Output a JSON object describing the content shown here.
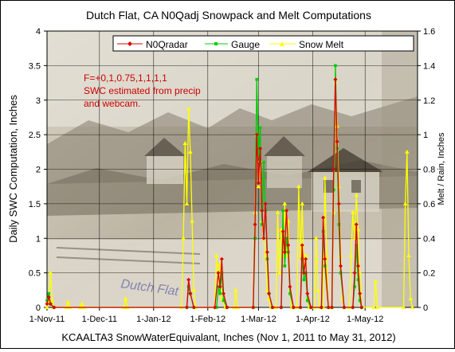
{
  "chart_data": {
    "type": "line",
    "title": "Dutch Flat, CA N0Qadj Snowpack and Melt Computations",
    "xlabel": "KCAALTA3 SnowWaterEquivalant, Inches (Nov 1, 2011 to May 31, 2012)",
    "ylabel": "Daily SWC Computation, Inches",
    "y2label": "Melt / Rain, Inches",
    "xlim": [
      "2011-11-01",
      "2012-05-31"
    ],
    "ylim": [
      0,
      4
    ],
    "y2lim": [
      0,
      1.6
    ],
    "x_ticks": [
      "1-Nov-11",
      "1-Dec-11",
      "1-Jan-12",
      "1-Feb-12",
      "1-Mar-12",
      "1-Apr-12",
      "1-May-12"
    ],
    "y_ticks": [
      "0",
      "0.5",
      "1",
      "1.5",
      "2",
      "2.5",
      "3",
      "3.5",
      "4"
    ],
    "y2_ticks": [
      "0",
      "0.2",
      "0.4",
      "0.6",
      "0.8",
      "1",
      "1.2",
      "1.4",
      "1.6"
    ],
    "grid": true,
    "legend_position": "top",
    "annotation": [
      "F=+0,1,0.75,1,1,1,1",
      "SWC estimated from precip",
      "and webcam."
    ],
    "background_photo_caption": "Dutch Flat",
    "series": [
      {
        "name": "N0Qradar",
        "color": "#dd0000",
        "marker": "diamond",
        "axis": "left",
        "points": [
          [
            "2011-11-01",
            0.05
          ],
          [
            "2011-11-02",
            0.15
          ],
          [
            "2011-11-03",
            0.05
          ],
          [
            "2011-11-05",
            0
          ],
          [
            "2012-01-20",
            0
          ],
          [
            "2012-01-21",
            0.4
          ],
          [
            "2012-01-22",
            0.2
          ],
          [
            "2012-01-24",
            0
          ],
          [
            "2012-02-05",
            0
          ],
          [
            "2012-02-07",
            0.5
          ],
          [
            "2012-02-08",
            0.3
          ],
          [
            "2012-02-09",
            0.7
          ],
          [
            "2012-02-10",
            0.2
          ],
          [
            "2012-02-12",
            0
          ],
          [
            "2012-02-27",
            0
          ],
          [
            "2012-02-28",
            1.2
          ],
          [
            "2012-02-29",
            2.5
          ],
          [
            "2012-03-01",
            1.8
          ],
          [
            "2012-03-02",
            2.3
          ],
          [
            "2012-03-03",
            1.4
          ],
          [
            "2012-03-04",
            1.0
          ],
          [
            "2012-03-05",
            1.5
          ],
          [
            "2012-03-06",
            0.8
          ],
          [
            "2012-03-07",
            0.2
          ],
          [
            "2012-03-09",
            0
          ],
          [
            "2012-03-14",
            0
          ],
          [
            "2012-03-15",
            1.1
          ],
          [
            "2012-03-16",
            0.8
          ],
          [
            "2012-03-17",
            1.4
          ],
          [
            "2012-03-18",
            0.9
          ],
          [
            "2012-03-19",
            0.3
          ],
          [
            "2012-03-21",
            0
          ],
          [
            "2012-03-25",
            0
          ],
          [
            "2012-03-26",
            0.9
          ],
          [
            "2012-03-27",
            0.5
          ],
          [
            "2012-03-28",
            0.7
          ],
          [
            "2012-03-29",
            0.2
          ],
          [
            "2012-03-31",
            0
          ],
          [
            "2012-04-06",
            0
          ],
          [
            "2012-04-07",
            1.3
          ],
          [
            "2012-04-08",
            0.7
          ],
          [
            "2012-04-10",
            0
          ],
          [
            "2012-04-12",
            0
          ],
          [
            "2012-04-13",
            2.0
          ],
          [
            "2012-04-14",
            3.3
          ],
          [
            "2012-04-15",
            2.4
          ],
          [
            "2012-04-16",
            1.5
          ],
          [
            "2012-04-17",
            0.6
          ],
          [
            "2012-04-19",
            0
          ],
          [
            "2012-04-24",
            0
          ],
          [
            "2012-04-25",
            0.5
          ],
          [
            "2012-04-26",
            1.2
          ],
          [
            "2012-04-27",
            0.6
          ],
          [
            "2012-04-28",
            0.2
          ],
          [
            "2012-04-29",
            0
          ]
        ]
      },
      {
        "name": "Gauge",
        "color": "#00cc00",
        "marker": "square",
        "axis": "left",
        "points": [
          [
            "2011-11-01",
            0.1
          ],
          [
            "2011-11-02",
            0.2
          ],
          [
            "2011-11-03",
            0.05
          ],
          [
            "2011-11-05",
            0
          ],
          [
            "2012-01-20",
            0
          ],
          [
            "2012-01-21",
            0.3
          ],
          [
            "2012-01-22",
            0.2
          ],
          [
            "2012-01-24",
            0
          ],
          [
            "2012-02-06",
            0
          ],
          [
            "2012-02-07",
            0.3
          ],
          [
            "2012-02-08",
            0.2
          ],
          [
            "2012-02-09",
            0.5
          ],
          [
            "2012-02-10",
            0.1
          ],
          [
            "2012-02-12",
            0
          ],
          [
            "2012-02-27",
            0
          ],
          [
            "2012-02-28",
            1.0
          ],
          [
            "2012-02-29",
            3.3
          ],
          [
            "2012-03-01",
            2.2
          ],
          [
            "2012-03-02",
            2.6
          ],
          [
            "2012-03-03",
            1.2
          ],
          [
            "2012-03-04",
            2.1
          ],
          [
            "2012-03-05",
            1.4
          ],
          [
            "2012-03-06",
            0.7
          ],
          [
            "2012-03-07",
            0.2
          ],
          [
            "2012-03-09",
            0
          ],
          [
            "2012-03-14",
            0
          ],
          [
            "2012-03-15",
            1.4
          ],
          [
            "2012-03-16",
            0.6
          ],
          [
            "2012-03-17",
            1.0
          ],
          [
            "2012-03-18",
            0.8
          ],
          [
            "2012-03-19",
            0.2
          ],
          [
            "2012-03-21",
            0
          ],
          [
            "2012-03-25",
            0
          ],
          [
            "2012-03-26",
            0.7
          ],
          [
            "2012-03-27",
            0.4
          ],
          [
            "2012-03-28",
            0.5
          ],
          [
            "2012-03-29",
            0.1
          ],
          [
            "2012-03-31",
            0
          ],
          [
            "2012-04-06",
            0
          ],
          [
            "2012-04-07",
            1.1
          ],
          [
            "2012-04-08",
            0.6
          ],
          [
            "2012-04-10",
            0
          ],
          [
            "2012-04-12",
            0
          ],
          [
            "2012-04-13",
            1.7
          ],
          [
            "2012-04-14",
            3.5
          ],
          [
            "2012-04-15",
            2.3
          ],
          [
            "2012-04-16",
            1.2
          ],
          [
            "2012-04-17",
            0.5
          ],
          [
            "2012-04-19",
            0
          ],
          [
            "2012-04-24",
            0
          ],
          [
            "2012-04-25",
            0.3
          ],
          [
            "2012-04-26",
            0.9
          ],
          [
            "2012-04-27",
            0.4
          ],
          [
            "2012-04-28",
            0.1
          ],
          [
            "2012-04-29",
            0
          ]
        ]
      },
      {
        "name": "Snow Melt",
        "color": "#ffff00",
        "marker": "triangle",
        "axis": "right",
        "points": [
          [
            "2011-11-01",
            0
          ],
          [
            "2011-11-02",
            0.03
          ],
          [
            "2011-11-03",
            0.2
          ],
          [
            "2011-11-04",
            0.04
          ],
          [
            "2011-11-05",
            0
          ],
          [
            "2011-11-12",
            0
          ],
          [
            "2011-11-13",
            0.03
          ],
          [
            "2011-11-14",
            0
          ],
          [
            "2011-11-20",
            0
          ],
          [
            "2011-11-21",
            0.02
          ],
          [
            "2011-11-22",
            0
          ],
          [
            "2011-12-15",
            0
          ],
          [
            "2011-12-16",
            0.05
          ],
          [
            "2011-12-17",
            0
          ],
          [
            "2012-01-17",
            0
          ],
          [
            "2012-01-18",
            0.4
          ],
          [
            "2012-01-19",
            0.95
          ],
          [
            "2012-01-20",
            0.6
          ],
          [
            "2012-01-21",
            1.15
          ],
          [
            "2012-01-22",
            0.9
          ],
          [
            "2012-01-23",
            0.5
          ],
          [
            "2012-01-24",
            0.1
          ],
          [
            "2012-01-25",
            0
          ],
          [
            "2012-02-05",
            0
          ],
          [
            "2012-02-06",
            0.3
          ],
          [
            "2012-02-07",
            0.15
          ],
          [
            "2012-02-08",
            0.25
          ],
          [
            "2012-02-09",
            0.05
          ],
          [
            "2012-02-11",
            0
          ],
          [
            "2012-02-16",
            0
          ],
          [
            "2012-02-17",
            0.1
          ],
          [
            "2012-02-18",
            0
          ],
          [
            "2012-02-27",
            0
          ],
          [
            "2012-02-28",
            0.55
          ],
          [
            "2012-02-29",
            1.0
          ],
          [
            "2012-03-01",
            0.7
          ],
          [
            "2012-03-02",
            0.85
          ],
          [
            "2012-03-03",
            0.5
          ],
          [
            "2012-03-04",
            0.4
          ],
          [
            "2012-03-05",
            0.3
          ],
          [
            "2012-03-06",
            0.1
          ],
          [
            "2012-03-07",
            0.05
          ],
          [
            "2012-03-08",
            0
          ],
          [
            "2012-03-11",
            0
          ],
          [
            "2012-03-12",
            0.55
          ],
          [
            "2012-03-13",
            0.2
          ],
          [
            "2012-03-14",
            0.45
          ],
          [
            "2012-03-15",
            0.3
          ],
          [
            "2012-03-16",
            0.6
          ],
          [
            "2012-03-17",
            0.3
          ],
          [
            "2012-03-18",
            0.5
          ],
          [
            "2012-03-19",
            0.1
          ],
          [
            "2012-03-20",
            0
          ],
          [
            "2012-03-23",
            0
          ],
          [
            "2012-03-24",
            0.7
          ],
          [
            "2012-03-25",
            0.3
          ],
          [
            "2012-03-26",
            0.6
          ],
          [
            "2012-03-27",
            0.2
          ],
          [
            "2012-03-28",
            0.3
          ],
          [
            "2012-03-29",
            0.05
          ],
          [
            "2012-03-30",
            0
          ],
          [
            "2012-04-02",
            0
          ],
          [
            "2012-04-03",
            0.4
          ],
          [
            "2012-04-04",
            0.1
          ],
          [
            "2012-04-05",
            0
          ],
          [
            "2012-04-07",
            0
          ],
          [
            "2012-04-08",
            0.75
          ],
          [
            "2012-04-09",
            0.3
          ],
          [
            "2012-04-10",
            0
          ],
          [
            "2012-04-12",
            0
          ],
          [
            "2012-04-13",
            0.55
          ],
          [
            "2012-04-14",
            1.3
          ],
          [
            "2012-04-15",
            1.05
          ],
          [
            "2012-04-16",
            0.7
          ],
          [
            "2012-04-17",
            0.3
          ],
          [
            "2012-04-18",
            0.05
          ],
          [
            "2012-04-19",
            0
          ],
          [
            "2012-04-22",
            0
          ],
          [
            "2012-04-23",
            0.3
          ],
          [
            "2012-04-24",
            0.55
          ],
          [
            "2012-04-25",
            0.4
          ],
          [
            "2012-04-26",
            0.65
          ],
          [
            "2012-04-27",
            0.45
          ],
          [
            "2012-04-28",
            0.2
          ],
          [
            "2012-04-29",
            0
          ],
          [
            "2012-05-06",
            0
          ],
          [
            "2012-05-07",
            0.15
          ],
          [
            "2012-05-08",
            0
          ],
          [
            "2012-05-23",
            0
          ],
          [
            "2012-05-24",
            0.6
          ],
          [
            "2012-05-25",
            0.9
          ],
          [
            "2012-05-26",
            0.3
          ],
          [
            "2012-05-27",
            0.05
          ],
          [
            "2012-05-28",
            0
          ]
        ]
      }
    ]
  }
}
